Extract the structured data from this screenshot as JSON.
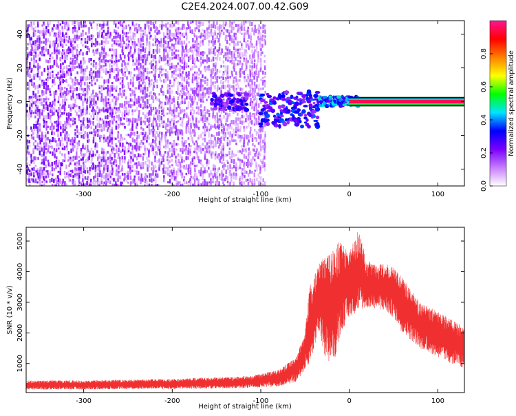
{
  "page": {
    "title": "C2E4.2024.007.00.42.G09"
  },
  "chart_data": [
    {
      "type": "heatmap",
      "title": "C2E4.2024.007.00.42.G09",
      "xlabel": "Height of straight line (km)",
      "ylabel": "Frequency (Hz)",
      "xlim": [
        -365,
        130
      ],
      "ylim": [
        -50,
        48
      ],
      "x_ticks": [
        -300,
        -200,
        -100,
        0,
        100
      ],
      "y_ticks": [
        -40,
        -20,
        0,
        20,
        40
      ],
      "grid": false,
      "colorbar": {
        "label": "Normalized spectral amplitude",
        "range": [
          0,
          1
        ],
        "ticks": [
          0.0,
          0.2,
          0.4,
          0.6,
          0.8
        ],
        "colormap": [
          "#ffffff",
          "#c77dff",
          "#7a00ff",
          "#0000ff",
          "#00e5ff",
          "#00ff00",
          "#ffff00",
          "#ff8000",
          "#ff0000",
          "#ff1493"
        ]
      },
      "regions": [
        {
          "x_range": [
            -365,
            -95
          ],
          "f_range": [
            -50,
            48
          ],
          "amplitude": 0.12,
          "description_level": "noise"
        },
        {
          "x_range": [
            -155,
            -115
          ],
          "f_range": [
            -5,
            5
          ],
          "amplitude": 0.3
        },
        {
          "x_range": [
            -100,
            -35
          ],
          "f_range": [
            -15,
            6
          ],
          "amplitude": 0.35
        },
        {
          "x_range": [
            -35,
            10
          ],
          "f_range": [
            -3,
            3
          ],
          "amplitude": 0.45
        },
        {
          "x_range": [
            0,
            130
          ],
          "f_range": [
            -1,
            1
          ],
          "amplitude": 0.95
        }
      ]
    },
    {
      "type": "line",
      "xlabel": "Height of straight line (km)",
      "ylabel": "SNR (10 * v/v)",
      "xlim": [
        -365,
        130
      ],
      "ylim": [
        50,
        5450
      ],
      "x_ticks": [
        -300,
        -200,
        -100,
        0,
        100
      ],
      "y_ticks": [
        1000,
        2000,
        3000,
        4000,
        5000
      ],
      "grid": false,
      "series_color": "#f03030",
      "envelope": {
        "x": [
          -365,
          -300,
          -200,
          -150,
          -110,
          -80,
          -60,
          -50,
          -45,
          -40,
          -35,
          -25,
          -15,
          -10,
          0,
          10,
          20,
          30,
          40,
          50,
          60,
          80,
          100,
          130
        ],
        "low": [
          150,
          150,
          170,
          180,
          200,
          250,
          400,
          800,
          1000,
          1400,
          2000,
          1000,
          1200,
          2000,
          2500,
          2700,
          2800,
          2800,
          2700,
          2500,
          2000,
          1500,
          1200,
          800
        ],
        "high": [
          450,
          450,
          500,
          550,
          600,
          800,
          1200,
          2000,
          3600,
          3800,
          4300,
          4600,
          4900,
          5000,
          4600,
          5400,
          4400,
          4200,
          4300,
          4200,
          3800,
          3000,
          2700,
          2200
        ]
      }
    }
  ]
}
